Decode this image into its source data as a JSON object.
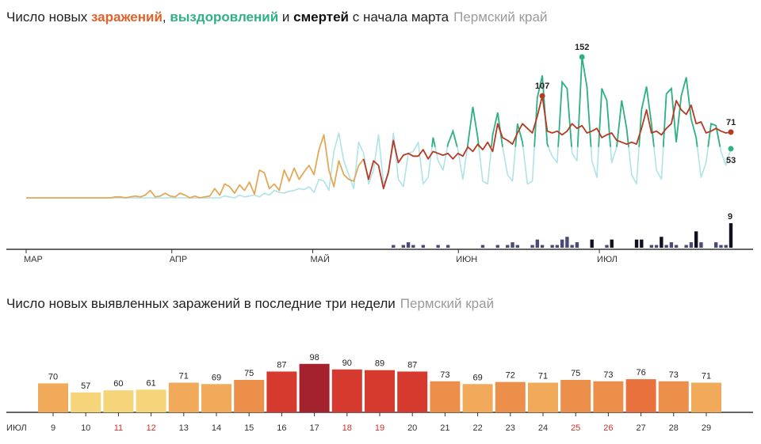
{
  "top": {
    "title": {
      "part1": "Число новых ",
      "infections": "заражений",
      "sep1": ", ",
      "recoveries": "выздоровлений",
      "sep2": " и ",
      "deaths": "смертей",
      "part2": " с начала марта",
      "region": "Пермский край"
    },
    "colors": {
      "infections": "#e0622a",
      "recoveries": "#2fb085",
      "deaths": "#111111"
    }
  },
  "bottom": {
    "title": {
      "text": "Число новых выявленных заражений в последние три недели",
      "region": "Пермский край"
    }
  },
  "chart_data": [
    {
      "type": "line",
      "x_start": "2020-03-01",
      "x_end": "2020-07-29",
      "xtick_labels": [
        "МАР",
        "АПР",
        "МАЙ",
        "ИЮН",
        "ИЮЛ"
      ],
      "xtick_dates": [
        "2020-03-01",
        "2020-04-01",
        "2020-05-01",
        "2020-06-01",
        "2020-07-01"
      ],
      "ylim": [
        0,
        160
      ],
      "series": [
        {
          "key": "infections",
          "color_early": "#e3a857",
          "color_late": "#b53b25",
          "values": [
            0,
            0,
            0,
            0,
            0,
            0,
            0,
            0,
            0,
            0,
            0,
            0,
            0,
            0,
            0,
            0,
            0,
            0,
            1,
            1,
            0,
            1,
            2,
            1,
            3,
            8,
            1,
            2,
            5,
            2,
            1,
            5,
            3,
            0,
            2,
            0,
            1,
            2,
            10,
            3,
            15,
            12,
            5,
            14,
            8,
            17,
            4,
            30,
            27,
            10,
            15,
            8,
            30,
            18,
            32,
            20,
            28,
            35,
            25,
            52,
            68,
            30,
            12,
            40,
            25,
            20,
            18,
            35,
            42,
            20,
            40,
            35,
            10,
            28,
            62,
            38,
            46,
            48,
            45,
            45,
            52,
            42,
            50,
            48,
            46,
            48,
            42,
            48,
            45,
            55,
            50,
            58,
            52,
            60,
            50,
            80,
            65,
            62,
            58,
            70,
            80,
            75,
            70,
            88,
            110,
            72,
            70,
            72,
            68,
            72,
            80,
            75,
            78,
            70,
            72,
            75,
            65,
            68,
            70,
            62,
            60,
            58,
            60,
            58,
            75,
            95,
            70,
            72,
            68,
            75,
            80,
            105,
            95,
            90,
            100,
            80,
            82,
            70,
            72,
            75,
            72,
            70,
            71
          ],
          "last_label": "71"
        },
        {
          "key": "recoveries",
          "color_early": "#aee3ea",
          "color_late": "#2fb085",
          "values": [
            0,
            0,
            0,
            0,
            0,
            0,
            0,
            0,
            0,
            0,
            0,
            0,
            0,
            0,
            0,
            0,
            0,
            0,
            0,
            0,
            0,
            0,
            0,
            0,
            0,
            0,
            0,
            0,
            0,
            0,
            0,
            0,
            0,
            0,
            0,
            0,
            0,
            0,
            0,
            0,
            2,
            1,
            0,
            3,
            1,
            2,
            3,
            1,
            5,
            3,
            8,
            6,
            5,
            7,
            8,
            10,
            9,
            12,
            6,
            20,
            18,
            8,
            50,
            70,
            40,
            25,
            10,
            60,
            48,
            15,
            30,
            68,
            15,
            25,
            70,
            20,
            12,
            48,
            50,
            60,
            15,
            22,
            65,
            40,
            30,
            58,
            72,
            52,
            20,
            58,
            98,
            65,
            18,
            15,
            68,
            92,
            55,
            25,
            18,
            80,
            60,
            15,
            18,
            108,
            132,
            58,
            45,
            38,
            125,
            118,
            48,
            40,
            152,
            120,
            40,
            22,
            118,
            105,
            38,
            55,
            105,
            75,
            25,
            15,
            95,
            120,
            80,
            30,
            20,
            112,
            118,
            60,
            110,
            130,
            85,
            65,
            22,
            38,
            80,
            78,
            50,
            35,
            53
          ],
          "last_label": "53"
        }
      ],
      "annotations": [
        {
          "series": "infections",
          "value": "107"
        },
        {
          "series": "recoveries",
          "value": "152"
        },
        {
          "series": "infections",
          "value": "71"
        },
        {
          "series": "recoveries",
          "value": "53"
        }
      ],
      "deaths": {
        "values": [
          0,
          0,
          0,
          0,
          0,
          0,
          0,
          0,
          0,
          0,
          0,
          0,
          0,
          0,
          0,
          0,
          0,
          0,
          0,
          0,
          0,
          0,
          0,
          0,
          0,
          0,
          0,
          0,
          0,
          0,
          0,
          0,
          0,
          0,
          0,
          0,
          0,
          0,
          0,
          0,
          0,
          0,
          0,
          0,
          0,
          0,
          0,
          0,
          0,
          0,
          0,
          0,
          0,
          0,
          0,
          0,
          0,
          0,
          0,
          0,
          0,
          0,
          0,
          0,
          0,
          0,
          0,
          0,
          0,
          0,
          0,
          0,
          0,
          0,
          1,
          0,
          1,
          2,
          1,
          0,
          1,
          0,
          0,
          1,
          0,
          1,
          0,
          0,
          0,
          0,
          0,
          0,
          1,
          0,
          0,
          1,
          0,
          1,
          2,
          1,
          0,
          0,
          1,
          3,
          1,
          0,
          1,
          1,
          3,
          4,
          1,
          2,
          0,
          0,
          3,
          0,
          0,
          1,
          3,
          0,
          0,
          0,
          0,
          3,
          3,
          0,
          1,
          1,
          4,
          1,
          2,
          1,
          0,
          1,
          2,
          6,
          2,
          0,
          0,
          2,
          1,
          1,
          9
        ],
        "last_label": "9",
        "ylim": [
          0,
          10
        ]
      }
    },
    {
      "type": "bar",
      "month_label": "ИЮЛ",
      "categories": [
        "9",
        "10",
        "11",
        "12",
        "13",
        "14",
        "15",
        "16",
        "17",
        "18",
        "19",
        "20",
        "21",
        "22",
        "23",
        "24",
        "25",
        "26",
        "27",
        "28",
        "29"
      ],
      "values": [
        70,
        57,
        60,
        61,
        71,
        69,
        75,
        87,
        98,
        90,
        89,
        87,
        73,
        69,
        72,
        71,
        75,
        73,
        76,
        73,
        71
      ],
      "weekend": [
        false,
        false,
        true,
        true,
        false,
        false,
        false,
        false,
        false,
        true,
        true,
        false,
        false,
        false,
        false,
        false,
        true,
        true,
        false,
        false,
        false
      ],
      "ylim": [
        0,
        100
      ]
    }
  ]
}
